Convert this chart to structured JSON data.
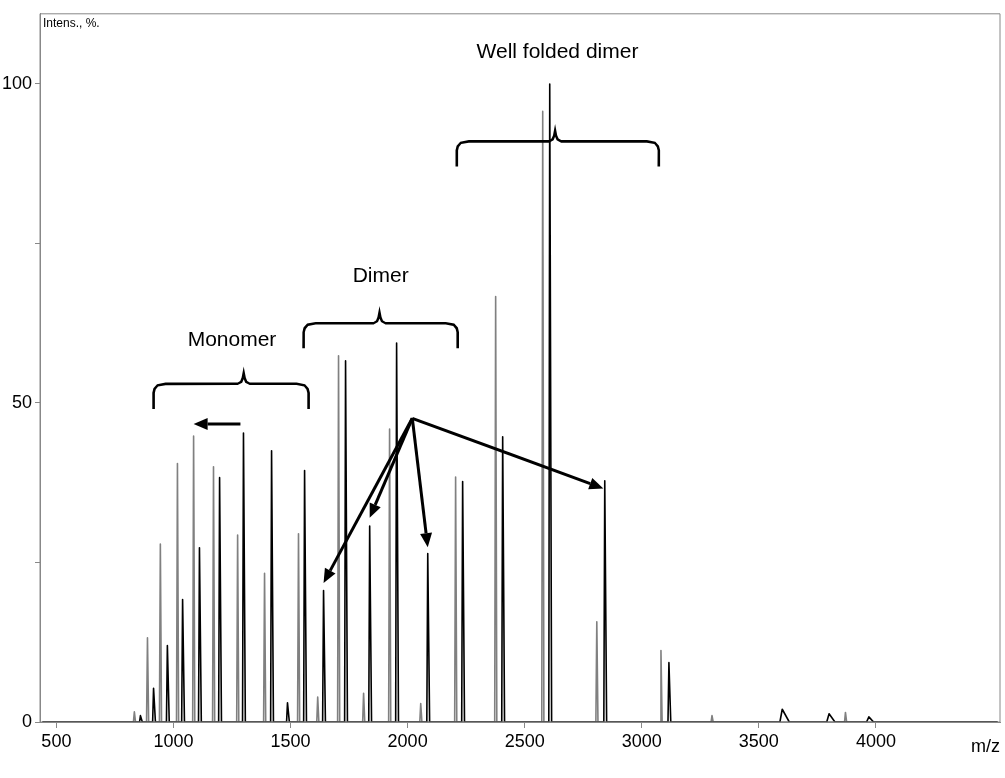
{
  "chart_data": {
    "type": "line",
    "xlabel": "m/z",
    "ylabel": "Intens., %.",
    "xlim": [
      430,
      4530
    ],
    "xticks": [
      500,
      1000,
      1500,
      2000,
      2500,
      3000,
      3500,
      4000
    ],
    "ylim": [
      0,
      111
    ],
    "yticks": [
      0,
      {
        "value": 25,
        "label": null
      },
      50,
      {
        "value": 75,
        "label": null
      },
      100
    ],
    "grid": false,
    "legend": false,
    "marker": "none",
    "line_style": "solid",
    "annotations": [
      "Monomer",
      "Dimer",
      "Well folded dimer"
    ],
    "series": [
      {
        "color": "#808080",
        "x": [
          440,
          829,
          833,
          838,
          885,
          889,
          894,
          940,
          944,
          949,
          1013,
          1017,
          1022,
          1082,
          1086,
          1091,
          1167,
          1171,
          1176,
          1270,
          1274,
          1279,
          1385,
          1389,
          1394,
          1530,
          1534,
          1539,
          1612,
          1616,
          1621,
          1701,
          1705,
          1710,
          1808,
          1812,
          1817,
          1919,
          1923,
          1928,
          2052,
          2056,
          2061,
          2201,
          2205,
          2210,
          2372,
          2376,
          2381,
          2573,
          2577,
          2582,
          2804,
          2808,
          2813,
          3078,
          3082,
          3087,
          3296,
          3300,
          3305,
          3866,
          3870,
          3875,
          4520
        ],
        "values": [
          0,
          0,
          1.6,
          0,
          0,
          13.2,
          0,
          0,
          27.9,
          0,
          0,
          40.5,
          0,
          0,
          44.8,
          0,
          0,
          40,
          0,
          0,
          29.3,
          0,
          0,
          23.3,
          0,
          0,
          29.5,
          0,
          0,
          3.9,
          0,
          0,
          57.4,
          0,
          0,
          4.5,
          0,
          0,
          45.9,
          0,
          0,
          2.9,
          0,
          0,
          38.4,
          0,
          0,
          66.7,
          0,
          0,
          95.7,
          0,
          0,
          15.7,
          0,
          0,
          11.2,
          0,
          0,
          1,
          0,
          0,
          1.5,
          0,
          0
        ]
      },
      {
        "color": "#000000",
        "x": [
          440,
          855,
          859,
          867,
          911,
          915,
          923,
          970,
          974,
          982,
          1035,
          1039,
          1047,
          1107,
          1111,
          1119,
          1193,
          1197,
          1205,
          1295,
          1299,
          1307,
          1415,
          1419,
          1427,
          1483,
          1487,
          1495,
          1556,
          1560,
          1568,
          1637,
          1641,
          1649,
          1731,
          1735,
          1743,
          1834,
          1838,
          1846,
          1949,
          1953,
          1961,
          2082,
          2086,
          2094,
          2231,
          2235,
          2243,
          2402,
          2406,
          2414,
          2603,
          2607,
          2615,
          2838,
          2842,
          2850,
          3112,
          3116,
          3124,
          3590,
          3600,
          3630,
          3790,
          3800,
          3825,
          3960,
          3970,
          3990,
          4520
        ],
        "values": [
          0,
          0,
          1,
          0,
          0,
          5.3,
          0,
          0,
          12,
          0,
          0,
          19.2,
          0,
          0,
          27.3,
          0,
          0,
          38.3,
          0,
          0,
          45.3,
          0,
          0,
          42.5,
          0,
          0,
          3,
          0,
          0,
          39.4,
          0,
          0,
          20.6,
          0,
          0,
          56.6,
          0,
          0,
          30.7,
          0,
          0,
          59.4,
          0,
          0,
          26.4,
          0,
          0,
          37.7,
          0,
          0,
          44.7,
          0,
          0,
          100,
          0,
          0,
          37.8,
          0,
          0,
          9.3,
          0,
          0,
          2,
          0,
          0,
          1.3,
          0,
          0,
          0.8,
          0,
          0
        ]
      }
    ]
  }
}
